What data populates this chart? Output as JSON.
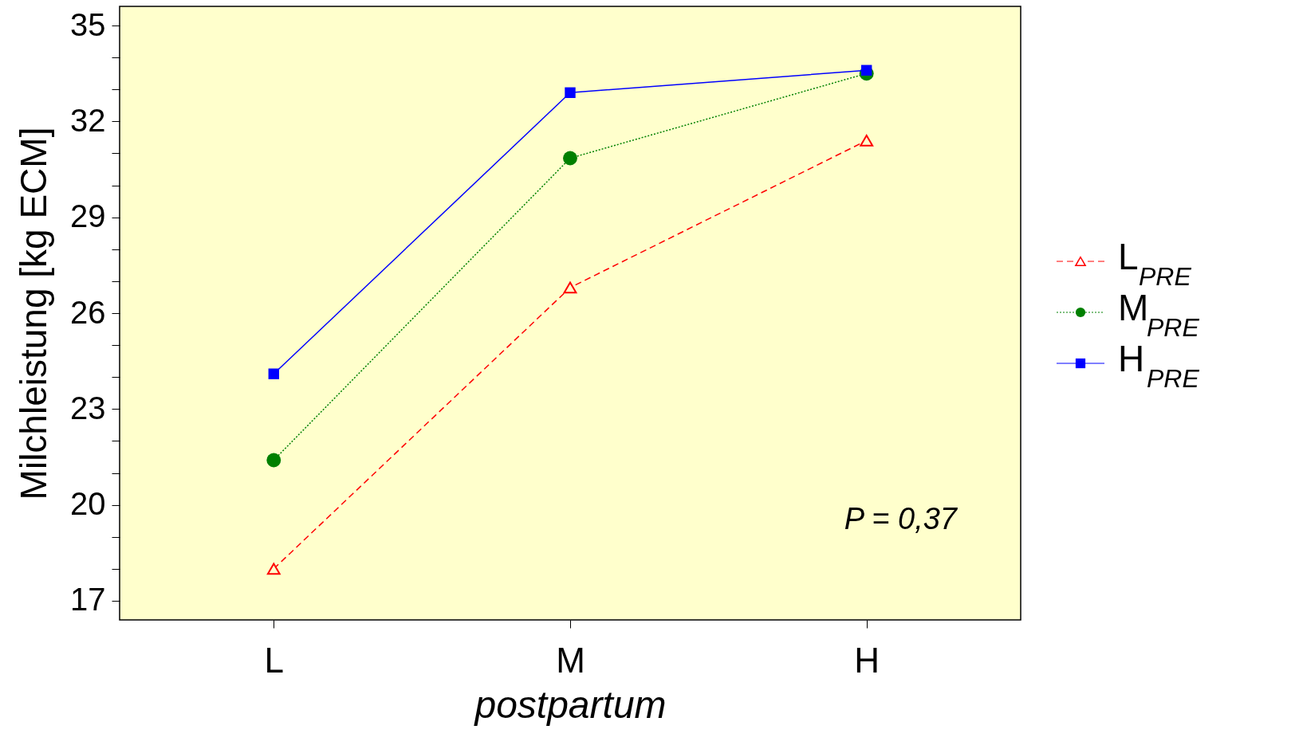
{
  "chart_data": {
    "type": "line",
    "xlabel": "postpartum",
    "ylabel": "Milchleistung [kg ECM]",
    "categories": [
      "L",
      "M",
      "H"
    ],
    "series": [
      {
        "name": "L$_{PRE}$",
        "color": "#ff0000",
        "values": [
          18.0,
          26.8,
          31.4
        ],
        "marker": "triangle",
        "line_style": "dashed"
      },
      {
        "name": "M$_{PRE}$",
        "color": "#008000",
        "values": [
          21.4,
          30.85,
          33.5
        ],
        "marker": "circle",
        "line_style": "dotted"
      },
      {
        "name": "H$_{PRE}$",
        "color": "#0000ff",
        "values": [
          24.1,
          32.9,
          33.6
        ],
        "marker": "square",
        "line_style": "solid"
      }
    ],
    "ylim": [
      16.4,
      35.6
    ],
    "yticks": [
      17,
      {
        "value": 18,
        "label": null
      },
      {
        "value": 19,
        "label": null
      },
      20,
      {
        "value": 21,
        "label": null
      },
      {
        "value": 22,
        "label": null
      },
      23,
      {
        "value": 24,
        "label": null
      },
      {
        "value": 25,
        "label": null
      },
      26,
      {
        "value": 27,
        "label": null
      },
      {
        "value": 28,
        "label": null
      },
      29,
      {
        "value": 30,
        "label": null
      },
      {
        "value": 31,
        "label": null
      },
      32,
      {
        "value": 33,
        "label": null
      },
      {
        "value": 34,
        "label": null
      },
      35
    ],
    "annotations": [
      "P = 0,37"
    ],
    "legend": "right",
    "grid": false
  }
}
